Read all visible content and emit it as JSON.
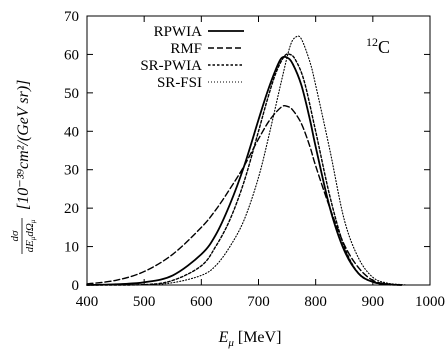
{
  "chart_data": {
    "type": "line",
    "xlabel": {
      "var": "E",
      "var_sub": "μ",
      "unit": "[MeV]"
    },
    "ylabel": {
      "frac_num": "dσ",
      "frac_den": "dE",
      "frac_den_sub1": "μ",
      "frac_den_mid": "dΩ",
      "frac_den_sub2": "μ",
      "units": "[10⁻³⁹cm²/(GeV sr)]"
    },
    "xlim": [
      400,
      1000
    ],
    "ylim": [
      0,
      70
    ],
    "xticks": [
      "400",
      "500",
      "600",
      "700",
      "800",
      "900",
      "1000"
    ],
    "yticks": [
      "0",
      "10",
      "20",
      "30",
      "40",
      "50",
      "60",
      "70"
    ],
    "annotation": {
      "mass_number": "12",
      "element": "C"
    },
    "legend_position": "top-left",
    "series": [
      {
        "name": "RPWIA",
        "style": "solid",
        "color": "#000000",
        "x": [
          400,
          450,
          500,
          550,
          600,
          625,
          650,
          675,
          700,
          715,
          730,
          740,
          750,
          760,
          775,
          790,
          800,
          825,
          850,
          875,
          900,
          925,
          950
        ],
        "y": [
          0,
          0.2,
          0.7,
          2.5,
          8,
          13,
          21,
          31,
          43,
          50,
          56,
          59,
          59.2,
          57.5,
          52,
          43,
          36,
          20,
          9,
          3,
          0.8,
          0.2,
          0
        ]
      },
      {
        "name": "RMF",
        "style": "dashed",
        "color": "#000000",
        "x": [
          400,
          450,
          500,
          550,
          600,
          625,
          650,
          675,
          700,
          720,
          740,
          750,
          760,
          775,
          790,
          800,
          825,
          850,
          875,
          900,
          925,
          950
        ],
        "y": [
          0.3,
          1.2,
          3.5,
          8,
          15,
          19.5,
          25,
          31,
          38,
          43,
          46.3,
          46.5,
          45.5,
          42,
          36,
          31,
          20,
          10.5,
          4.5,
          1.2,
          0.3,
          0
        ]
      },
      {
        "name": "SR-PWIA",
        "style": "dashdot-fine",
        "color": "#000000",
        "x": [
          400,
          500,
          550,
          600,
          625,
          650,
          675,
          700,
          715,
          730,
          745,
          755,
          765,
          780,
          800,
          825,
          850,
          875,
          900,
          925,
          950
        ],
        "y": [
          0,
          0.1,
          1.2,
          5,
          10,
          17,
          27,
          40,
          48,
          55,
          59.5,
          60,
          58.5,
          53,
          40,
          23,
          10,
          3,
          0.8,
          0.1,
          0
        ]
      },
      {
        "name": "SR-FSI",
        "style": "dotted",
        "color": "#000000",
        "x": [
          400,
          500,
          550,
          600,
          625,
          650,
          675,
          700,
          720,
          740,
          755,
          765,
          775,
          790,
          800,
          825,
          850,
          875,
          900,
          925,
          950,
          960
        ],
        "y": [
          0,
          0.1,
          0.6,
          2.5,
          5,
          10,
          17,
          28,
          40,
          53,
          62,
          64.5,
          64,
          58,
          52,
          35,
          17,
          7,
          2,
          0.5,
          0.1,
          0
        ]
      }
    ]
  }
}
